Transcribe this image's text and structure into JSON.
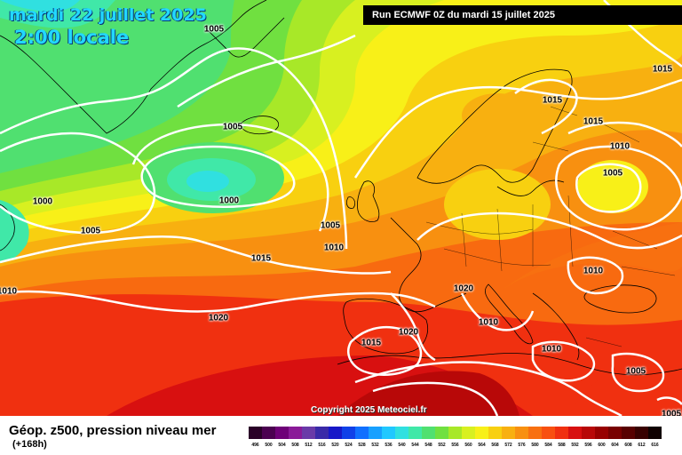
{
  "header": {
    "date": "mardi 22 juillet 2025",
    "time": "2:00 locale",
    "run": "Run ECMWF 0Z du mardi 15 juillet 2025"
  },
  "copyright": "Copyright 2025 Meteociel.fr",
  "legend": {
    "title": "Géop. z500, pression niveau mer",
    "subtitle": "(+168h)",
    "levels": [
      "496",
      "500",
      "504",
      "508",
      "512",
      "516",
      "520",
      "524",
      "528",
      "532",
      "536",
      "540",
      "544",
      "548",
      "552",
      "556",
      "560",
      "564",
      "568",
      "572",
      "576",
      "580",
      "584",
      "588",
      "592",
      "596",
      "600",
      "604",
      "608",
      "612",
      "616"
    ],
    "colors": [
      "#2a0028",
      "#4b0050",
      "#6e0078",
      "#8a1a98",
      "#6a3aa8",
      "#3a2aa8",
      "#1818c8",
      "#1040e8",
      "#1070ff",
      "#18a0ff",
      "#20c8ff",
      "#30e0e0",
      "#40e8a8",
      "#50e070",
      "#70e040",
      "#a8e828",
      "#d8f020",
      "#f8f018",
      "#f8d010",
      "#f8b010",
      "#f89010",
      "#f87010",
      "#f85010",
      "#f03010",
      "#d81010",
      "#b80808",
      "#980000",
      "#780000",
      "#580000",
      "#380000",
      "#100000"
    ]
  },
  "isobars": [
    {
      "text": "1005"
    },
    {
      "text": "1005"
    },
    {
      "text": "1000"
    },
    {
      "text": "1000"
    },
    {
      "text": "1005"
    },
    {
      "text": "1005"
    },
    {
      "text": "1010"
    },
    {
      "text": "1015"
    },
    {
      "text": "1020"
    },
    {
      "text": "1010"
    },
    {
      "text": "1015"
    },
    {
      "text": "1015"
    },
    {
      "text": "1015"
    },
    {
      "text": "1010"
    },
    {
      "text": "1005"
    },
    {
      "text": "1010"
    },
    {
      "text": "1020"
    },
    {
      "text": "1010"
    },
    {
      "text": "1020"
    },
    {
      "text": "1015"
    },
    {
      "text": "1010"
    },
    {
      "text": "1005"
    },
    {
      "text": "1005"
    }
  ]
}
